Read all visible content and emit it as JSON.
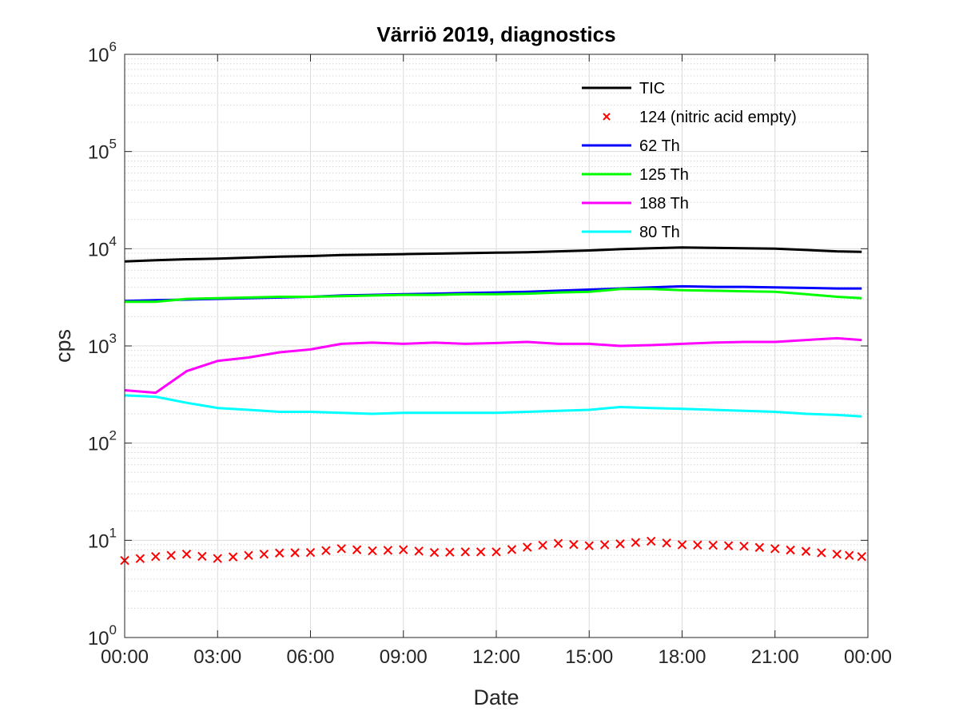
{
  "chart_data": {
    "type": "line",
    "title": "Värriö 2019, diagnostics",
    "xlabel": "Date",
    "ylabel": "cps",
    "x_ticks": [
      "00:00",
      "03:00",
      "06:00",
      "09:00",
      "12:00",
      "15:00",
      "18:00",
      "21:00",
      "00:00"
    ],
    "xlim_hours": [
      0,
      24
    ],
    "yscale": "log",
    "ylim": [
      1,
      1000000
    ],
    "y_tick_base": "10",
    "y_tick_exponents": [
      "0",
      "1",
      "2",
      "3",
      "4",
      "5",
      "6"
    ],
    "grid": true,
    "legend_position": "top-right",
    "x": [
      0,
      1,
      2,
      3,
      4,
      5,
      6,
      7,
      8,
      9,
      10,
      11,
      12,
      13,
      14,
      15,
      16,
      17,
      18,
      19,
      20,
      21,
      22,
      23,
      23.8
    ],
    "series": [
      {
        "name": "TIC",
        "style": "line",
        "color": "#000000",
        "values": [
          7400,
          7600,
          7800,
          7900,
          8100,
          8300,
          8400,
          8600,
          8700,
          8800,
          8900,
          9000,
          9100,
          9200,
          9400,
          9600,
          9900,
          10100,
          10300,
          10200,
          10100,
          10000,
          9700,
          9400,
          9300
        ]
      },
      {
        "name": "124 (nitric acid empty)",
        "style": "markers",
        "marker": "x",
        "color": "#ff0000",
        "values": [
          6.2,
          6.8,
          7.2,
          6.5,
          7.0,
          7.4,
          7.5,
          8.2,
          7.8,
          8.0,
          7.5,
          7.6,
          7.6,
          8.5,
          9.3,
          8.8,
          9.2,
          9.8,
          9.0,
          8.9,
          8.7,
          8.2,
          7.7,
          7.2,
          6.8
        ]
      },
      {
        "name": "62 Th",
        "style": "line",
        "color": "#0000ff",
        "values": [
          2900,
          2950,
          3000,
          3050,
          3100,
          3150,
          3200,
          3300,
          3350,
          3400,
          3450,
          3500,
          3550,
          3600,
          3700,
          3800,
          3900,
          4000,
          4100,
          4050,
          4050,
          4000,
          3950,
          3900,
          3900
        ]
      },
      {
        "name": "125 Th",
        "style": "line",
        "color": "#00ff00",
        "values": [
          2850,
          2850,
          3050,
          3100,
          3150,
          3200,
          3200,
          3250,
          3300,
          3350,
          3350,
          3400,
          3400,
          3450,
          3550,
          3600,
          3850,
          3850,
          3750,
          3700,
          3650,
          3600,
          3400,
          3200,
          3100
        ]
      },
      {
        "name": "188 Th",
        "style": "line",
        "color": "#ff00ff",
        "values": [
          350,
          330,
          550,
          700,
          760,
          860,
          920,
          1050,
          1080,
          1050,
          1080,
          1050,
          1070,
          1100,
          1050,
          1050,
          1000,
          1020,
          1050,
          1080,
          1100,
          1100,
          1150,
          1200,
          1150
        ]
      },
      {
        "name": "80 Th",
        "style": "line",
        "color": "#00ffff",
        "values": [
          310,
          300,
          260,
          230,
          220,
          210,
          210,
          205,
          200,
          205,
          205,
          205,
          205,
          210,
          215,
          220,
          235,
          230,
          225,
          220,
          215,
          210,
          200,
          195,
          188
        ]
      }
    ]
  }
}
